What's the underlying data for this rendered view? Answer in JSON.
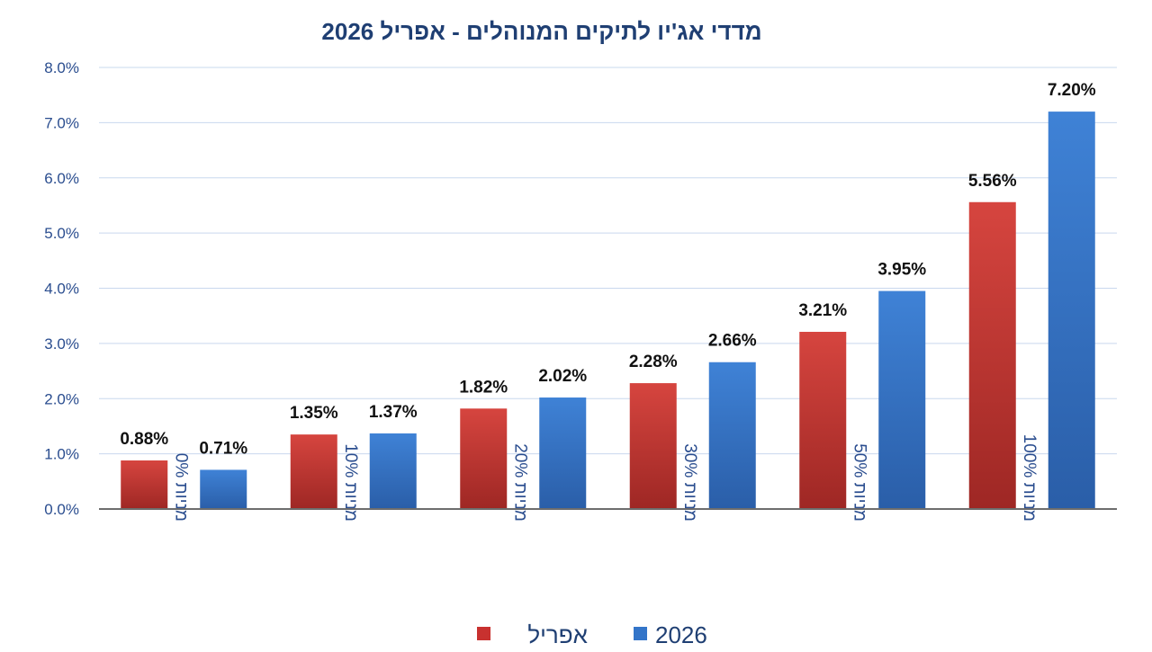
{
  "chart_data": {
    "type": "bar",
    "title": "מדדי אג'יו לתיקים המנוהלים  -  אפריל 2026",
    "categories": [
      "מניות 0%",
      "מניות 10%",
      "מניות 20%",
      "מניות 30%",
      "מניות 50%",
      "מניות 100%"
    ],
    "series": [
      {
        "name": "אפריל",
        "color": "#c8312f",
        "values": [
          0.88,
          1.35,
          1.82,
          2.28,
          3.21,
          5.56
        ],
        "labels": [
          "0.88%",
          "1.35%",
          "1.82%",
          "2.28%",
          "3.21%",
          "5.56%"
        ]
      },
      {
        "name": "2026",
        "color": "#3375c9",
        "values": [
          0.71,
          1.37,
          2.02,
          2.66,
          3.95,
          7.2
        ],
        "labels": [
          "0.71%",
          "1.37%",
          "2.02%",
          "2.66%",
          "3.95%",
          "7.20%"
        ]
      }
    ],
    "ylim": [
      0,
      8
    ],
    "yticks": [
      "0.0%",
      "1.0%",
      "2.0%",
      "3.0%",
      "4.0%",
      "5.0%",
      "6.0%",
      "7.0%",
      "8.0%"
    ],
    "grid": true,
    "legend_position": "bottom",
    "xlabel": "",
    "ylabel": ""
  }
}
